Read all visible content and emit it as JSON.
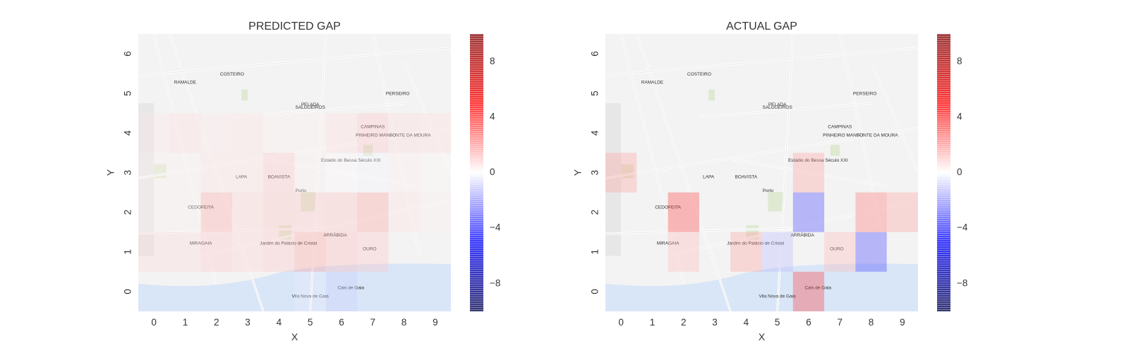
{
  "charts": [
    {
      "title": "PREDICTED GAP",
      "xlabel": "X",
      "ylabel": "Y",
      "colorbar": {
        "ticks": [
          "8",
          "4",
          "0",
          "−4",
          "−8"
        ]
      }
    },
    {
      "title": "ACTUAL GAP",
      "xlabel": "X",
      "ylabel": "Y",
      "colorbar": {
        "ticks": [
          "8",
          "4",
          "0",
          "−4",
          "−8"
        ]
      }
    }
  ],
  "map_labels": [
    "Estádio do Bessa Século XXI",
    "Porto",
    "BOAVISTA",
    "LAPA",
    "PERSEIRO",
    "CAMPINAS",
    "PINHEIRO MANSO",
    "CEDOFEITA",
    "MIRAGAIA",
    "Jardim do Palácio de Cristal",
    "RAMALDE",
    "SALGUEIROS",
    "PELADA",
    "COSTEIRO",
    "FONTE DA MOURA",
    "ARRÁBIDA",
    "OURO",
    "Vila Nova de Gaia",
    "Cais de Gaia"
  ],
  "chart_data": [
    {
      "type": "heatmap",
      "title": "PREDICTED GAP",
      "xlabel": "X",
      "ylabel": "Y",
      "x": [
        0,
        1,
        2,
        3,
        4,
        5,
        6,
        7,
        8,
        9
      ],
      "y": [
        0,
        1,
        2,
        3,
        4,
        5,
        6
      ],
      "xlim": [
        -0.5,
        9.5
      ],
      "ylim": [
        -0.5,
        6.5
      ],
      "colormap": "seismic",
      "color_range": [
        -10,
        10
      ],
      "grid": false,
      "values": [
        [
          0,
          0,
          0,
          0,
          0,
          -0.4,
          -1.0,
          0,
          0,
          0
        ],
        [
          0.8,
          0.8,
          1.2,
          1.0,
          1.2,
          2.0,
          1.5,
          1.2,
          0,
          0
        ],
        [
          0.3,
          0.3,
          1.8,
          1.0,
          1.3,
          1.2,
          1.3,
          2.0,
          0.6,
          0.3
        ],
        [
          0.3,
          0.3,
          0.6,
          0.6,
          1.2,
          0.3,
          0.1,
          -0.2,
          0.4,
          0.2
        ],
        [
          0.5,
          0.7,
          0.5,
          0.6,
          0.3,
          0.3,
          0.7,
          1.2,
          0.8,
          0.7
        ],
        [
          0,
          0,
          0,
          0,
          0,
          0,
          0,
          0,
          0,
          0
        ],
        [
          0,
          0,
          0,
          0,
          0,
          0,
          0,
          0,
          0,
          0
        ]
      ]
    },
    {
      "type": "heatmap",
      "title": "ACTUAL GAP",
      "xlabel": "X",
      "ylabel": "Y",
      "x": [
        0,
        1,
        2,
        3,
        4,
        5,
        6,
        7,
        8,
        9
      ],
      "y": [
        0,
        1,
        2,
        3,
        4,
        5,
        6
      ],
      "xlim": [
        -0.5,
        9.5
      ],
      "ylim": [
        -0.5,
        6.5
      ],
      "colormap": "seismic",
      "color_range": [
        -10,
        10
      ],
      "grid": false,
      "values": [
        [
          0,
          0,
          0,
          0,
          0,
          0,
          4.0,
          0,
          0,
          0
        ],
        [
          0,
          0,
          1.5,
          0,
          2.0,
          -1.5,
          0,
          1.5,
          -4.0,
          0
        ],
        [
          0,
          0,
          4.0,
          0,
          0,
          0,
          -4.0,
          0,
          3.0,
          2.0
        ],
        [
          2.0,
          0,
          0,
          0,
          0,
          0,
          2.0,
          0,
          0,
          0
        ],
        [
          0,
          0,
          0,
          0,
          0,
          0,
          0,
          0,
          0,
          0
        ],
        [
          0,
          0,
          0,
          0,
          0,
          0,
          0,
          0,
          0,
          0
        ],
        [
          0,
          0,
          0,
          0,
          0,
          0,
          0,
          0,
          0,
          0
        ]
      ]
    }
  ]
}
